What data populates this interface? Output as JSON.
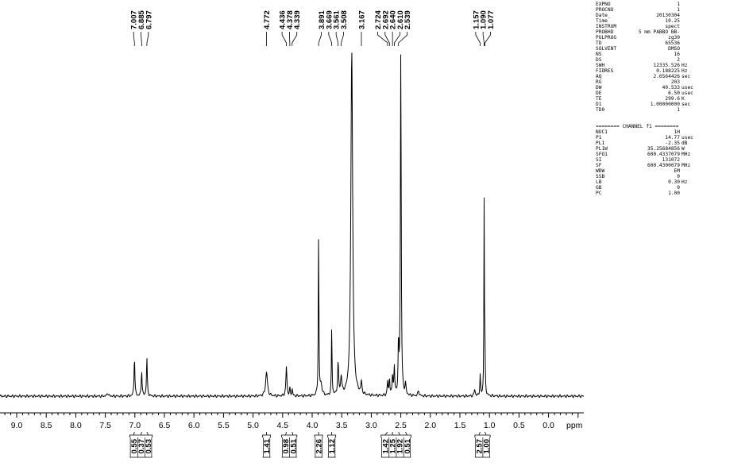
{
  "chart_data": {
    "type": "line",
    "title": "",
    "xlabel": "ppm",
    "ylabel": "",
    "xlim": [
      9.3,
      -0.7
    ],
    "x_ticks": [
      9.0,
      8.5,
      8.0,
      7.5,
      7.0,
      6.5,
      6.0,
      5.5,
      5.0,
      4.5,
      4.0,
      3.5,
      3.0,
      2.5,
      2.0,
      1.5,
      1.0,
      0.5,
      0.0
    ],
    "x_tick_labels": [
      "9.0",
      "8.5",
      "8.0",
      "7.5",
      "7.0",
      "6.5",
      "6.0",
      "5.5",
      "5.0",
      "4.5",
      "4.0",
      "3.5",
      "3.0",
      "2.5",
      "2.0",
      "1.5",
      "1.0",
      "0.5",
      "0.0"
    ],
    "peak_labels": [
      {
        "group": [
          7.007,
          6.885,
          6.797
        ],
        "labels": [
          "7.007",
          "6.885",
          "6.797"
        ]
      },
      {
        "group": [
          4.772
        ],
        "labels": [
          "4.772"
        ]
      },
      {
        "group": [
          4.436,
          4.378,
          4.339
        ],
        "labels": [
          "4.436",
          "4.378",
          "4.339"
        ]
      },
      {
        "group": [
          3.891,
          3.669,
          3.561,
          3.508
        ],
        "labels": [
          "3.891",
          "3.669",
          "3.561",
          "3.508"
        ]
      },
      {
        "group": [
          3.167
        ],
        "labels": [
          "3.167"
        ]
      },
      {
        "group": [
          2.724,
          2.692,
          2.64,
          2.61,
          2.539
        ],
        "labels": [
          "2.724",
          "2.692",
          "2.640",
          "2.610",
          "2.539"
        ]
      },
      {
        "group": [
          1.157,
          1.09,
          1.077
        ],
        "labels": [
          "1.157",
          "1.090",
          "1.077"
        ]
      }
    ],
    "peaks": [
      {
        "ppm": 7.46,
        "height": 0.01,
        "width": 0.012
      },
      {
        "ppm": 7.007,
        "height": 0.115,
        "width": 0.008
      },
      {
        "ppm": 6.885,
        "height": 0.075,
        "width": 0.008
      },
      {
        "ppm": 6.797,
        "height": 0.11,
        "width": 0.008
      },
      {
        "ppm": 4.772,
        "height": 0.07,
        "width": 0.018
      },
      {
        "ppm": 4.436,
        "height": 0.085,
        "width": 0.01
      },
      {
        "ppm": 4.378,
        "height": 0.02,
        "width": 0.008
      },
      {
        "ppm": 4.339,
        "height": 0.02,
        "width": 0.008
      },
      {
        "ppm": 3.891,
        "height": 0.47,
        "width": 0.006
      },
      {
        "ppm": 3.85,
        "height": 0.03,
        "width": 0.02
      },
      {
        "ppm": 3.669,
        "height": 0.2,
        "width": 0.006
      },
      {
        "ppm": 3.561,
        "height": 0.09,
        "width": 0.01
      },
      {
        "ppm": 3.508,
        "height": 0.05,
        "width": 0.012
      },
      {
        "ppm": 3.33,
        "height": 1.0,
        "width": 0.018
      },
      {
        "ppm": 3.167,
        "height": 0.035,
        "width": 0.01
      },
      {
        "ppm": 2.724,
        "height": 0.04,
        "width": 0.008
      },
      {
        "ppm": 2.692,
        "height": 0.05,
        "width": 0.008
      },
      {
        "ppm": 2.64,
        "height": 0.06,
        "width": 0.008
      },
      {
        "ppm": 2.61,
        "height": 0.08,
        "width": 0.008
      },
      {
        "ppm": 2.539,
        "height": 0.14,
        "width": 0.008
      },
      {
        "ppm": 2.5,
        "height": 1.0,
        "width": 0.008
      },
      {
        "ppm": 2.42,
        "height": 0.03,
        "width": 0.01
      },
      {
        "ppm": 2.2,
        "height": 0.015,
        "width": 0.012
      },
      {
        "ppm": 1.25,
        "height": 0.02,
        "width": 0.01
      },
      {
        "ppm": 1.157,
        "height": 0.06,
        "width": 0.007
      },
      {
        "ppm": 1.09,
        "height": 0.55,
        "width": 0.005
      },
      {
        "ppm": 1.077,
        "height": 0.12,
        "width": 0.006
      }
    ],
    "integrals": [
      {
        "ppm": 7.007,
        "value": "0.55"
      },
      {
        "ppm": 6.885,
        "value": "0.37"
      },
      {
        "ppm": 6.797,
        "value": "0.53"
      },
      {
        "ppm": 4.772,
        "value": "1.41"
      },
      {
        "ppm": 4.436,
        "value": "0.98"
      },
      {
        "ppm": 4.339,
        "value": "0.51"
      },
      {
        "ppm": 3.891,
        "value": "2.26"
      },
      {
        "ppm": 3.669,
        "value": "1.12"
      },
      {
        "ppm": 2.724,
        "value": "1.42"
      },
      {
        "ppm": 2.64,
        "value": "1.25"
      },
      {
        "ppm": 2.539,
        "value": "1.92"
      },
      {
        "ppm": 2.42,
        "value": "0.51"
      },
      {
        "ppm": 1.157,
        "value": "2.57"
      },
      {
        "ppm": 1.077,
        "value": "1.00"
      }
    ],
    "grid": false
  },
  "params_block1": [
    {
      "name": "EXPNO",
      "value": "1",
      "unit": ""
    },
    {
      "name": "PROCNO",
      "value": "1",
      "unit": ""
    },
    {
      "name": "Date_",
      "value": "20130304",
      "unit": ""
    },
    {
      "name": "Time",
      "value": "10.25",
      "unit": ""
    },
    {
      "name": "INSTRUM",
      "value": "spect",
      "unit": ""
    },
    {
      "name": "PROBHD",
      "value": "5 mm PABBO BB-",
      "unit": ""
    },
    {
      "name": "PULPROG",
      "value": "zg30",
      "unit": ""
    },
    {
      "name": "TD",
      "value": "65536",
      "unit": ""
    },
    {
      "name": "SOLVENT",
      "value": "DMSO",
      "unit": ""
    },
    {
      "name": "NS",
      "value": "16",
      "unit": ""
    },
    {
      "name": "DS",
      "value": "2",
      "unit": ""
    },
    {
      "name": "SWH",
      "value": "12335.526",
      "unit": "Hz"
    },
    {
      "name": "FIDRES",
      "value": "0.188225",
      "unit": "Hz"
    },
    {
      "name": "AQ",
      "value": "2.6564426",
      "unit": "sec"
    },
    {
      "name": "RG",
      "value": "203",
      "unit": ""
    },
    {
      "name": "DW",
      "value": "40.533",
      "unit": "usec"
    },
    {
      "name": "DE",
      "value": "6.50",
      "unit": "usec"
    },
    {
      "name": "TE",
      "value": "299.6",
      "unit": "K"
    },
    {
      "name": "D1",
      "value": "1.00000000",
      "unit": "sec"
    },
    {
      "name": "TD0",
      "value": "1",
      "unit": ""
    }
  ],
  "channel_header": "======== CHANNEL f1 ========",
  "params_block2": [
    {
      "name": "NUC1",
      "value": "1H",
      "unit": ""
    },
    {
      "name": "P1",
      "value": "14.77",
      "unit": "usec"
    },
    {
      "name": "PL1",
      "value": "-2.35",
      "unit": "dB"
    },
    {
      "name": "PL1W",
      "value": "35.25684856",
      "unit": "W"
    },
    {
      "name": "SFO1",
      "value": "600.4337079",
      "unit": "MHz"
    },
    {
      "name": "SI",
      "value": "131072",
      "unit": ""
    },
    {
      "name": "SF",
      "value": "600.4300079",
      "unit": "MHz"
    },
    {
      "name": "WDW",
      "value": "EM",
      "unit": ""
    },
    {
      "name": "SSB",
      "value": "0",
      "unit": ""
    },
    {
      "name": "LB",
      "value": "0.30",
      "unit": "Hz"
    },
    {
      "name": "GB",
      "value": "0",
      "unit": ""
    },
    {
      "name": "PC",
      "value": "1.00",
      "unit": ""
    }
  ]
}
